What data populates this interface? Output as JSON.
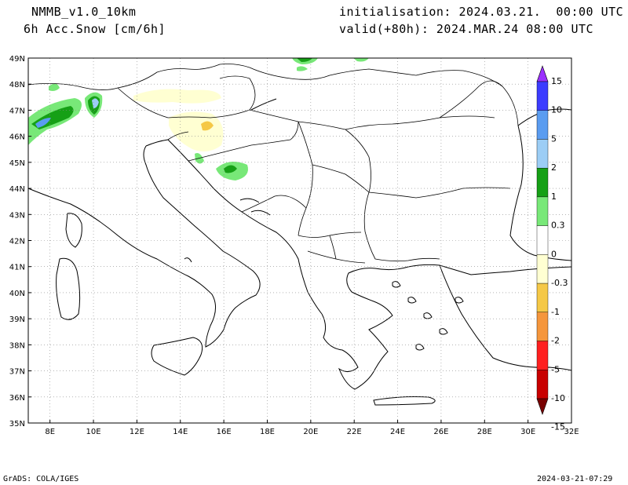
{
  "header": {
    "model": "NMMB_v1.0_10km",
    "variable": "6h Acc.Snow [cm/6h]",
    "init": "initialisation: 2024.03.21.  00:00 UTC",
    "valid": "valid(+80h): 2024.MAR.24 08:00 UTC"
  },
  "footer": {
    "credit": "GrADS: COLA/IGES",
    "timestamp": "2024-03-21-07:29"
  },
  "map": {
    "lat_labels": [
      "49N",
      "48N",
      "47N",
      "46N",
      "45N",
      "44N",
      "43N",
      "42N",
      "41N",
      "40N",
      "39N",
      "38N",
      "37N",
      "36N",
      "35N"
    ],
    "lon_labels": [
      "8E",
      "10E",
      "12E",
      "14E",
      "16E",
      "18E",
      "20E",
      "22E",
      "24E",
      "26E",
      "28E",
      "30E",
      "32E"
    ],
    "lat_range": [
      35,
      49
    ],
    "lon_range": [
      7,
      32
    ],
    "grid": "dotted"
  },
  "colorbar": {
    "labels": [
      "15",
      "10",
      "5",
      "2",
      "1",
      "0.3",
      "0",
      "-0.3",
      "-1",
      "-2",
      "-5",
      "-10",
      "-15"
    ],
    "colors": [
      "#9b30ff",
      "#3c3cff",
      "#5a9cf0",
      "#9ccdf5",
      "#16a016",
      "#78e878",
      "#ffffff",
      "#ffffd2",
      "#f5c846",
      "#f5963c",
      "#ff2020",
      "#c80000",
      "#780000"
    ]
  }
}
